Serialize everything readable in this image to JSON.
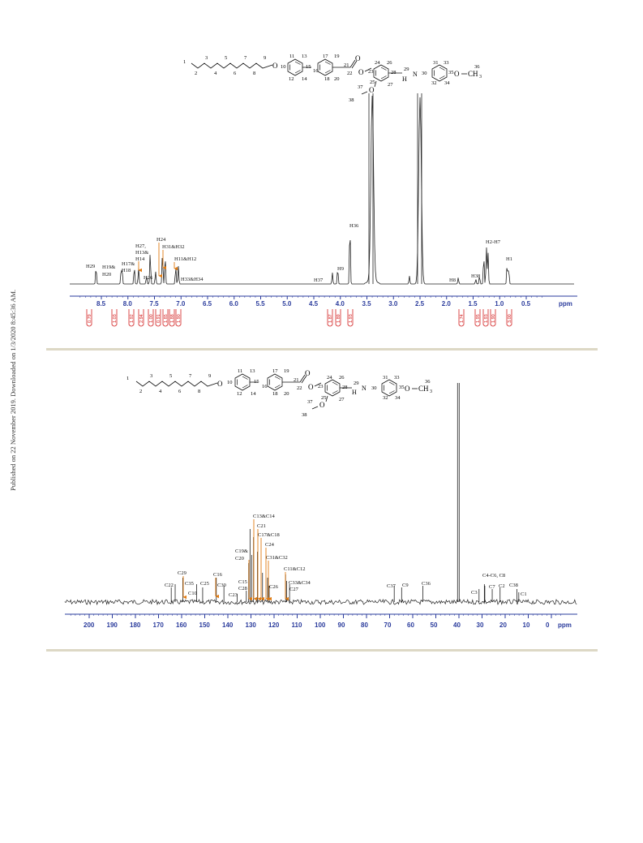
{
  "sidebar_text": "Published on 22 November 2019. Downloaded on 1/3/2020 8:45:36 AM.",
  "colors": {
    "spectrum": "#222222",
    "axis": "#2a3b9c",
    "integral": "#d32020",
    "arrow": "#e07a10",
    "rule": "#ddd8c5"
  },
  "structure": {
    "chain_numbers": [
      "1",
      "2",
      "3",
      "4",
      "5",
      "6",
      "7",
      "8",
      "9"
    ],
    "ring1_numbers": [
      "10",
      "11",
      "12",
      "13",
      "14",
      "15"
    ],
    "ring2_numbers": [
      "16",
      "17",
      "18",
      "19",
      "20",
      "21"
    ],
    "ester": {
      "carbonyl_num": "22",
      "o1": "O",
      "o2": "O"
    },
    "ring3_numbers": [
      "23",
      "24",
      "25",
      "26",
      "27",
      "28"
    ],
    "imine": {
      "c": "29",
      "h": "H",
      "n": "N"
    },
    "ring4_numbers": [
      "30",
      "31",
      "32",
      "33",
      "34",
      "35"
    ],
    "methoxy": {
      "num": "36",
      "o": "O",
      "ch3": "CH",
      "sub3": "3"
    },
    "ethoxy": {
      "n37": "37",
      "n38": "38",
      "o": "O"
    },
    "ring_o": "O"
  },
  "hnmr": {
    "peak_labels": {
      "h29": "H29",
      "h19h20_1": "H19&",
      "h19h20_2": "H20",
      "h17h18_1": "H17&",
      "h17h18_2": "H18",
      "h27_1": "H27,",
      "h27_2": "H13&",
      "h27_3": "H14",
      "h26": "H26",
      "h24": "H24",
      "h31h32": "H31&H32",
      "h11h12": "H11&H12",
      "h33h34": "H33&H34",
      "h37": "H37",
      "h9": "H9",
      "h36": "H36",
      "h8": "H8",
      "h38": "H38",
      "h2h7": "H2-H7",
      "h1": "H1"
    },
    "axis": {
      "ticks": [
        "8.5",
        "8.0",
        "7.5",
        "7.0",
        "6.5",
        "6.0",
        "5.5",
        "5.0",
        "4.5",
        "4.0",
        "3.5",
        "3.0",
        "2.5",
        "2.0",
        "1.5",
        "1.0",
        "0.5"
      ],
      "unit": "ppm"
    },
    "integrals": [
      "0.79",
      "1.03",
      "1.92",
      "2.94",
      "1.00",
      "0.91",
      "1.85",
      "1.88",
      "1.90",
      "1.87",
      "1.89",
      "1.93",
      "1.74",
      "1.95",
      "1.93",
      "1.90",
      "3.00"
    ]
  },
  "cnmr": {
    "peak_labels": {
      "c13c14": "C13&C14",
      "c21": "C21",
      "c17c18": "C17&C18",
      "c24": "C24",
      "c19c20_1": "C19&",
      "c19c20_2": "C20",
      "c31c32": "C31&C32",
      "c11c12": "C11&C12",
      "c33c34": "C33&C34",
      "c27": "C27",
      "c26": "C26",
      "c29": "C29",
      "c16": "C16",
      "c22": "C22",
      "c35": "C35",
      "c10": "C10",
      "c25": "C25",
      "c30": "C30",
      "c23": "C23",
      "c15": "C15",
      "c28": "C28",
      "c37": "C37",
      "c9": "C9",
      "c36": "C36",
      "c4c6": "C4-C6, C8",
      "c3": "C3",
      "c7": "C7",
      "c2": "C2",
      "c38": "C38",
      "c1": "C1"
    },
    "axis": {
      "ticks": [
        "200",
        "190",
        "180",
        "170",
        "160",
        "150",
        "140",
        "130",
        "120",
        "110",
        "100",
        "90",
        "80",
        "70",
        "60",
        "50",
        "40",
        "30",
        "20",
        "10",
        "0"
      ],
      "unit": "ppm"
    }
  }
}
